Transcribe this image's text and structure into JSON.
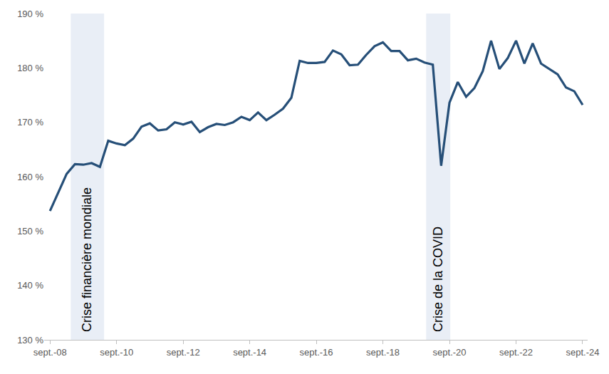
{
  "chart_data": {
    "type": "line",
    "categories": [
      "sept.-08",
      null,
      null,
      null,
      null,
      null,
      null,
      null,
      "sept.-10",
      null,
      null,
      null,
      null,
      null,
      null,
      null,
      "sept.-12",
      null,
      null,
      null,
      null,
      null,
      null,
      null,
      "sept.-14",
      null,
      null,
      null,
      null,
      null,
      null,
      null,
      "sept.-16",
      null,
      null,
      null,
      null,
      null,
      null,
      null,
      "sept.-18",
      null,
      null,
      null,
      null,
      null,
      null,
      null,
      "sept.-20",
      null,
      null,
      null,
      null,
      null,
      null,
      null,
      "sept.-22",
      null,
      null,
      null,
      null,
      null,
      null,
      null,
      "sept.-24"
    ],
    "values": [
      153.7,
      157,
      160.5,
      162.3,
      162.2,
      162.5,
      161.8,
      166.6,
      166.1,
      165.8,
      167,
      169.2,
      169.8,
      168.5,
      168.7,
      170,
      169.6,
      170.1,
      168.2,
      169.1,
      169.7,
      169.5,
      170,
      171,
      170.4,
      171.8,
      170.4,
      171.4,
      172.5,
      174.5,
      181.3,
      180.9,
      180.9,
      181.1,
      183.2,
      182.5,
      180.5,
      180.6,
      182.4,
      184,
      184.7,
      183.1,
      183.1,
      181.4,
      181.7,
      181,
      180.6,
      162,
      173.6,
      177.4,
      174.7,
      176.3,
      179.4,
      185,
      179.8,
      181.8,
      185,
      180.8,
      184.5,
      180.8,
      179.8,
      178.8,
      176.4,
      175.7,
      173.2
    ],
    "color": "#264f78",
    "ylim": [
      130,
      190
    ],
    "yticks": [
      {
        "value": 130,
        "label": "130 %"
      },
      {
        "value": 140,
        "label": "140 %"
      },
      {
        "value": 150,
        "label": "150 %"
      },
      {
        "value": 160,
        "label": "160 %"
      },
      {
        "value": 170,
        "label": "170 %"
      },
      {
        "value": 180,
        "label": "180 %"
      },
      {
        "value": 190,
        "label": "190 %"
      }
    ],
    "grid": false,
    "shaded_periods": [
      {
        "label": "Crise financière mondiale",
        "start": 2.5,
        "end": 6.5
      },
      {
        "label": "Crise de la COVID",
        "start": 45.2,
        "end": 48.1
      }
    ]
  }
}
